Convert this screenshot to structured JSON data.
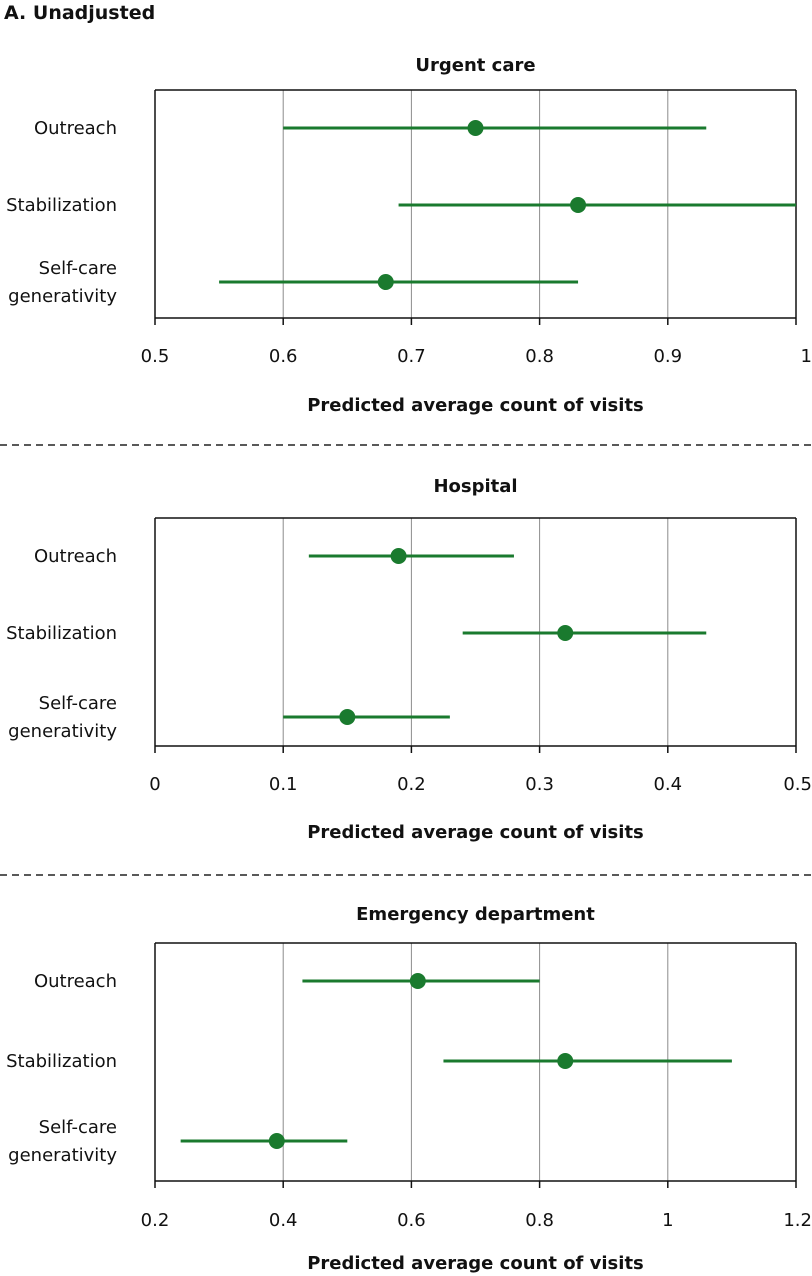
{
  "figure_label": "A. Unadjusted",
  "colors": {
    "marker": "#1a7a2e",
    "grid": "#8c8c8c",
    "axis": "#111111"
  },
  "chart_data": [
    {
      "type": "forest",
      "title": "Urgent care",
      "xlabel": "Predicted average count of visits",
      "xlim": [
        0.5,
        1.0
      ],
      "ticks": [
        0.5,
        0.6,
        0.7,
        0.8,
        0.9,
        1.0
      ],
      "tick_labels": [
        "0.5",
        "0.6",
        "0.7",
        "0.8",
        "0.9",
        "1"
      ],
      "gridlines": [
        0.6,
        0.7,
        0.8,
        0.9
      ],
      "categories": [
        {
          "label_lines": [
            "Outreach"
          ],
          "estimate": 0.75,
          "lower": 0.6,
          "upper": 0.93
        },
        {
          "label_lines": [
            "Stabilization"
          ],
          "estimate": 0.83,
          "lower": 0.69,
          "upper": 1.0
        },
        {
          "label_lines": [
            "Self-care",
            "generativity"
          ],
          "estimate": 0.68,
          "lower": 0.55,
          "upper": 0.83
        }
      ]
    },
    {
      "type": "forest",
      "title": "Hospital",
      "xlabel": "Predicted average count of visits",
      "xlim": [
        0,
        0.5
      ],
      "ticks": [
        0,
        0.1,
        0.2,
        0.3,
        0.4,
        0.5
      ],
      "tick_labels": [
        "0",
        "0.1",
        "0.2",
        "0.3",
        "0.4",
        "0.5"
      ],
      "gridlines": [
        0.1,
        0.2,
        0.3,
        0.4
      ],
      "categories": [
        {
          "label_lines": [
            "Outreach"
          ],
          "estimate": 0.19,
          "lower": 0.12,
          "upper": 0.28
        },
        {
          "label_lines": [
            "Stabilization"
          ],
          "estimate": 0.32,
          "lower": 0.24,
          "upper": 0.43
        },
        {
          "label_lines": [
            "Self-care",
            "generativity"
          ],
          "estimate": 0.15,
          "lower": 0.1,
          "upper": 0.23
        }
      ]
    },
    {
      "type": "forest",
      "title": "Emergency department",
      "xlabel": "Predicted average count of visits",
      "xlim": [
        0.2,
        1.2
      ],
      "ticks": [
        0.2,
        0.4,
        0.6,
        0.8,
        1.0,
        1.2
      ],
      "tick_labels": [
        "0.2",
        "0.4",
        "0.6",
        "0.8",
        "1",
        "1.2"
      ],
      "gridlines": [
        0.4,
        0.6,
        0.8,
        1.0
      ],
      "categories": [
        {
          "label_lines": [
            "Outreach"
          ],
          "estimate": 0.61,
          "lower": 0.43,
          "upper": 0.8
        },
        {
          "label_lines": [
            "Stabilization"
          ],
          "estimate": 0.84,
          "lower": 0.65,
          "upper": 1.1
        },
        {
          "label_lines": [
            "Self-care",
            "generativity"
          ],
          "estimate": 0.39,
          "lower": 0.24,
          "upper": 0.5
        }
      ]
    }
  ]
}
